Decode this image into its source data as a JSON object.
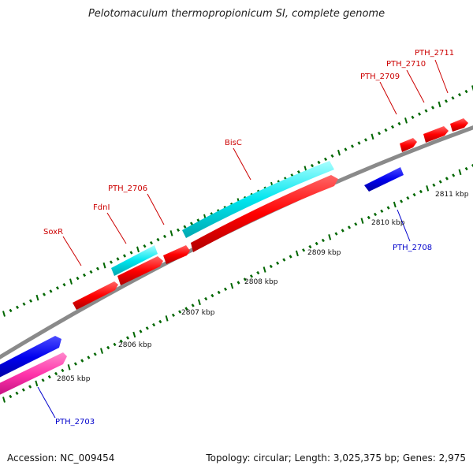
{
  "title": "Pelotomaculum thermopropionicum SI, complete genome",
  "footer": {
    "accession": "Accession: NC_009454",
    "summary": "Topology: circular; Length: 3,025,375 bp; Genes: 2,975"
  },
  "colors": {
    "backbone": "#888888",
    "forward_cds": "#ff0000",
    "reverse_cds": "#0000ff",
    "rna": "#00e5ee",
    "other": "#ff33aa",
    "tick": "#006600",
    "forward_label": "#cc0000",
    "reverse_label": "#0000cc"
  },
  "ticks": [
    "2805 kbp",
    "2806 kbp",
    "2807 kbp",
    "2808 kbp",
    "2809 kbp",
    "2810 kbp",
    "2811 kbp"
  ],
  "genes": [
    {
      "label": "PTH_2703",
      "strand": "reverse"
    },
    {
      "label": "SoxR",
      "strand": "forward"
    },
    {
      "label": "FdnI",
      "strand": "forward"
    },
    {
      "label": "PTH_2706",
      "strand": "forward"
    },
    {
      "label": "BisC",
      "strand": "forward"
    },
    {
      "label": "PTH_2708",
      "strand": "reverse"
    },
    {
      "label": "PTH_2709",
      "strand": "forward"
    },
    {
      "label": "PTH_2710",
      "strand": "forward"
    },
    {
      "label": "PTH_2711",
      "strand": "forward"
    }
  ]
}
